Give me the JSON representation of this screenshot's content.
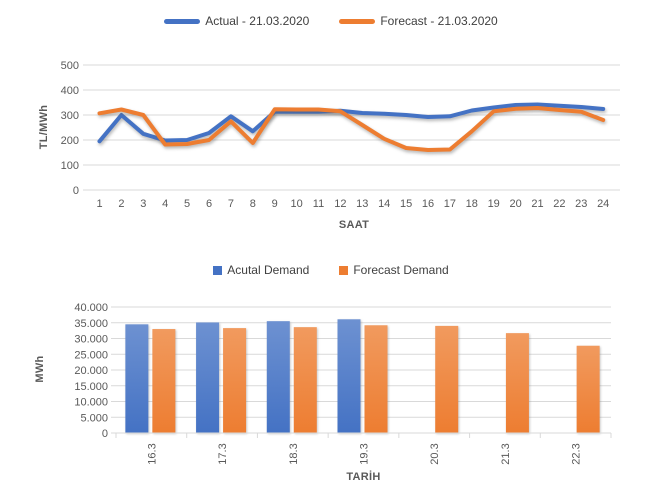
{
  "colors": {
    "actual_blue": "#4472C4",
    "forecast_orange": "#ED7D31",
    "gridline": "#D9D9D9",
    "tick_text": "#595959",
    "title_text": "#595959",
    "legend_text": "#404040",
    "background": "#FFFFFF"
  },
  "chart_data": [
    {
      "type": "line",
      "title": "",
      "xlabel": "SAAT",
      "ylabel": "TL/MWh",
      "x": [
        1,
        2,
        3,
        4,
        5,
        6,
        7,
        8,
        9,
        10,
        11,
        12,
        13,
        14,
        15,
        16,
        17,
        18,
        19,
        20,
        21,
        22,
        23,
        24
      ],
      "series": [
        {
          "name": "Actual - 21.03.2020",
          "color": "#4472C4",
          "values": [
            195,
            300,
            225,
            198,
            200,
            228,
            295,
            235,
            313,
            313,
            313,
            317,
            308,
            305,
            300,
            292,
            295,
            318,
            330,
            340,
            342,
            337,
            332,
            324
          ]
        },
        {
          "name": "Forecast - 21.03.2020",
          "color": "#ED7D31",
          "values": [
            307,
            322,
            300,
            182,
            184,
            200,
            275,
            188,
            323,
            322,
            322,
            315,
            260,
            205,
            168,
            160,
            162,
            235,
            315,
            325,
            328,
            320,
            313,
            280
          ]
        }
      ],
      "ylim": [
        0,
        500
      ],
      "yticks": [
        0,
        100,
        200,
        300,
        400,
        500
      ],
      "ytick_labels": [
        "0",
        "100",
        "200",
        "300",
        "400",
        "500"
      ],
      "grid": true,
      "legend_position": "top"
    },
    {
      "type": "bar",
      "title": "",
      "xlabel": "TARİH",
      "ylabel": "MWh",
      "categories": [
        "16.3",
        "17.3",
        "18.3",
        "19.3",
        "20.3",
        "21.3",
        "22.3"
      ],
      "series": [
        {
          "name": "Acutal Demand",
          "color": "#4472C4",
          "values": [
            34500,
            35100,
            35500,
            36100,
            null,
            null,
            null
          ]
        },
        {
          "name": "Forecast Demand",
          "color": "#ED7D31",
          "values": [
            33000,
            33300,
            33600,
            34200,
            34000,
            31700,
            27700
          ]
        }
      ],
      "ylim": [
        0,
        40000
      ],
      "yticks": [
        0,
        5000,
        10000,
        15000,
        20000,
        25000,
        30000,
        35000,
        40000
      ],
      "ytick_labels": [
        "0",
        "5.000",
        "10.000",
        "15.000",
        "20.000",
        "25.000",
        "30.000",
        "35.000",
        "40.000"
      ],
      "grid": true,
      "legend_position": "top"
    }
  ]
}
